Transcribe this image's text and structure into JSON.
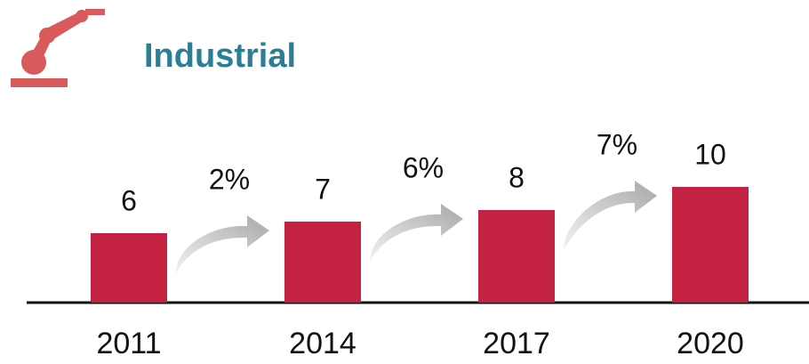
{
  "chart_data": {
    "type": "bar",
    "title": "Industrial",
    "categories": [
      "2011",
      "2014",
      "2017",
      "2020"
    ],
    "values": [
      6,
      7,
      8,
      10
    ],
    "color": "#c42242",
    "growth": {
      "values": [
        2,
        6,
        7
      ],
      "value_labels": [
        "2%",
        "6%",
        "7%"
      ]
    }
  }
}
